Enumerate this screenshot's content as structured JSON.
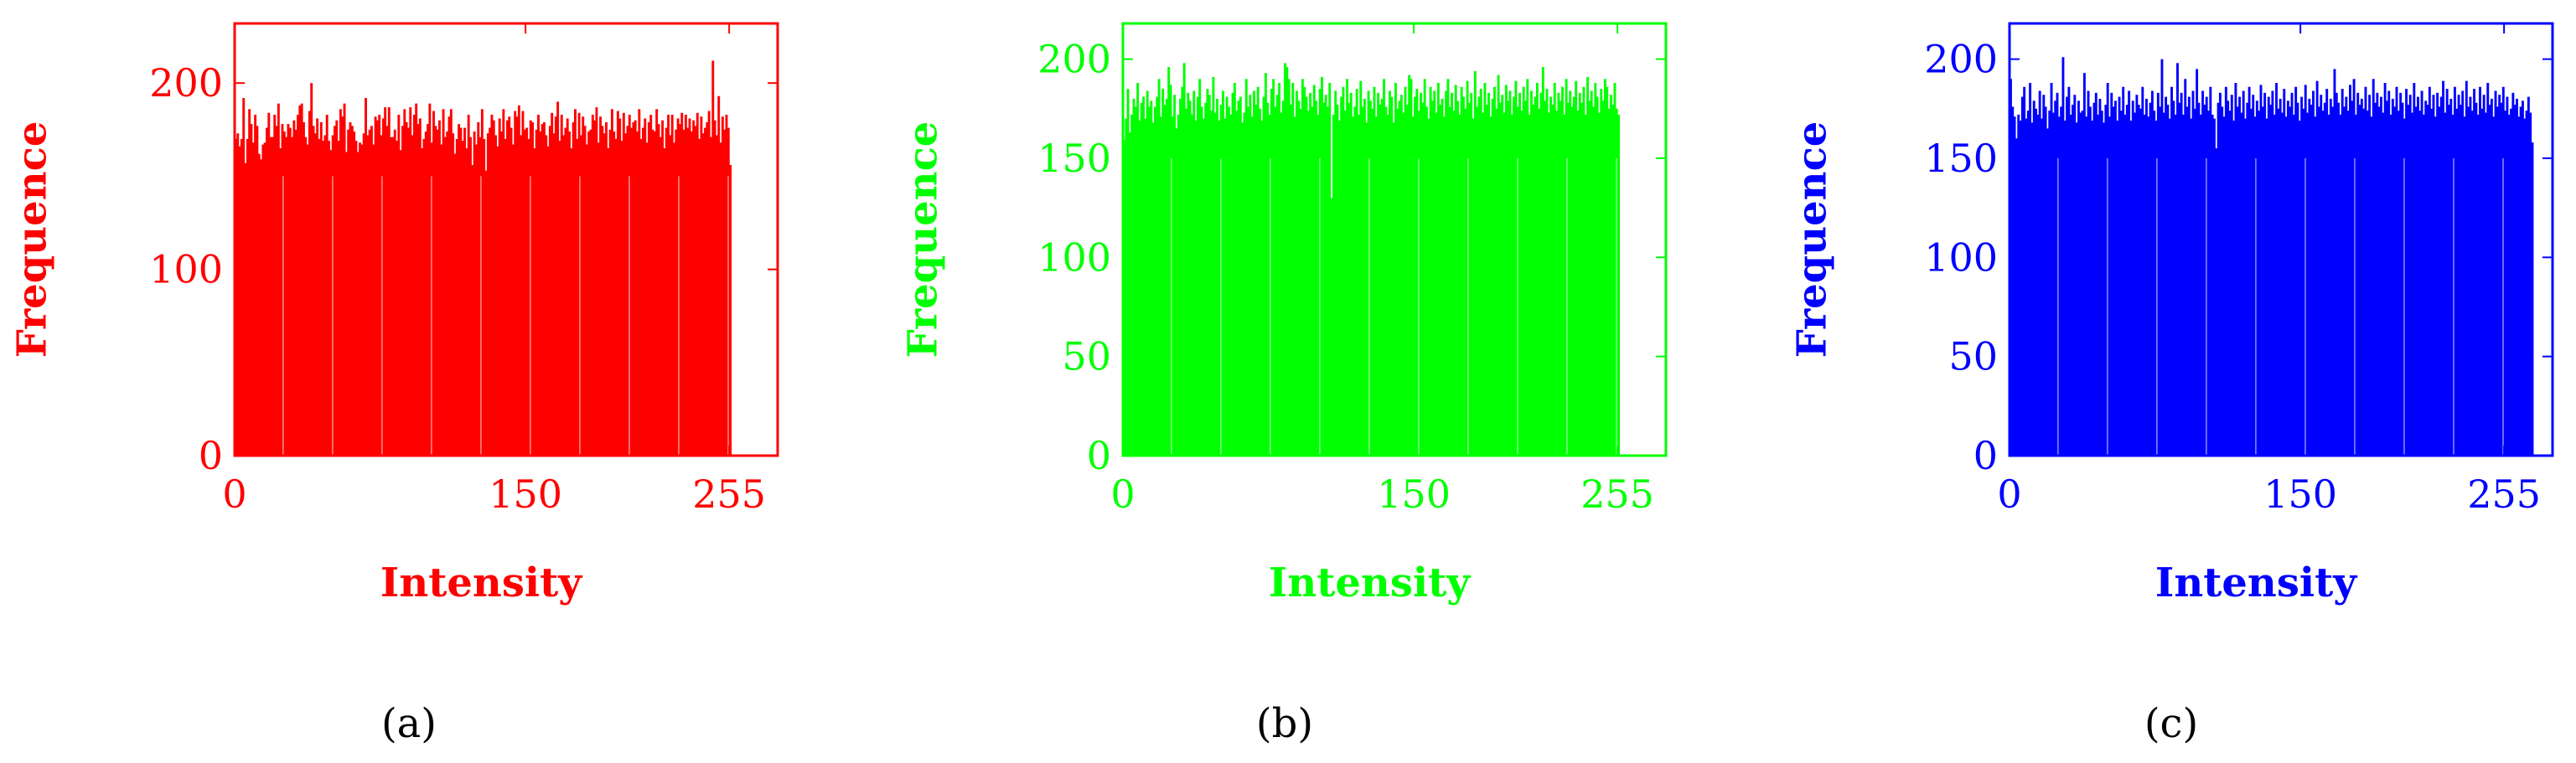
{
  "figure": {
    "panels": [
      {
        "caption": "(a)",
        "color": "#FF0000"
      },
      {
        "caption": "(b)",
        "color": "#00FF00"
      },
      {
        "caption": "(c)",
        "color": "#0000FF"
      }
    ]
  },
  "chart_data": [
    {
      "type": "bar",
      "title": "",
      "xlabel": "Intensity",
      "ylabel": "Frequence",
      "xlim": [
        0,
        280
      ],
      "ylim": [
        0,
        232
      ],
      "xticks": [
        0,
        150,
        255
      ],
      "yticks": [
        0,
        100,
        200
      ],
      "grid": false,
      "color": "#FF0000",
      "x_start": 0,
      "values": [
        170,
        173,
        166,
        170,
        192,
        157,
        170,
        186,
        178,
        168,
        183,
        177,
        162,
        159,
        167,
        168,
        176,
        184,
        171,
        171,
        183,
        177,
        189,
        165,
        178,
        174,
        171,
        178,
        176,
        171,
        180,
        175,
        183,
        188,
        189,
        179,
        171,
        167,
        185,
        200,
        177,
        173,
        181,
        170,
        179,
        169,
        172,
        183,
        169,
        164,
        172,
        177,
        180,
        169,
        186,
        182,
        189,
        163,
        175,
        179,
        177,
        174,
        169,
        163,
        168,
        167,
        173,
        192,
        172,
        175,
        177,
        167,
        182,
        180,
        183,
        172,
        181,
        187,
        177,
        187,
        171,
        171,
        175,
        169,
        183,
        164,
        177,
        186,
        179,
        176,
        187,
        172,
        183,
        189,
        178,
        181,
        165,
        170,
        174,
        178,
        189,
        168,
        185,
        177,
        175,
        180,
        167,
        186,
        171,
        174,
        182,
        186,
        173,
        162,
        170,
        178,
        176,
        169,
        176,
        165,
        183,
        171,
        156,
        174,
        167,
        179,
        171,
        186,
        170,
        153,
        173,
        176,
        183,
        180,
        172,
        166,
        181,
        174,
        186,
        170,
        180,
        182,
        176,
        167,
        185,
        182,
        188,
        172,
        185,
        175,
        176,
        170,
        180,
        179,
        165,
        175,
        183,
        174,
        178,
        179,
        172,
        166,
        177,
        184,
        173,
        182,
        190,
        169,
        183,
        172,
        176,
        181,
        174,
        165,
        179,
        186,
        170,
        184,
        172,
        182,
        177,
        167,
        174,
        175,
        183,
        180,
        187,
        168,
        182,
        177,
        173,
        179,
        165,
        175,
        186,
        174,
        170,
        185,
        181,
        169,
        184,
        173,
        177,
        183,
        176,
        179,
        180,
        174,
        186,
        170,
        176,
        181,
        168,
        179,
        183,
        175,
        174,
        186,
        178,
        171,
        180,
        165,
        176,
        183,
        172,
        183,
        168,
        175,
        181,
        178,
        184,
        175,
        183,
        176,
        181,
        174,
        180,
        177,
        184,
        170,
        182,
        173,
        176,
        179,
        185,
        171,
        212,
        180,
        172,
        193,
        168,
        182,
        175,
        183,
        176,
        156
      ]
    },
    {
      "type": "bar",
      "title": "",
      "xlabel": "Intensity",
      "ylabel": "Frequence",
      "xlim": [
        0,
        280
      ],
      "ylim": [
        0,
        218
      ],
      "xticks": [
        0,
        150,
        255
      ],
      "yticks": [
        0,
        50,
        100,
        150,
        200
      ],
      "grid": false,
      "color": "#00FF00",
      "x_start": 0,
      "values": [
        159,
        170,
        185,
        163,
        172,
        180,
        176,
        188,
        169,
        178,
        181,
        170,
        184,
        176,
        179,
        168,
        176,
        181,
        190,
        171,
        185,
        177,
        180,
        196,
        187,
        171,
        182,
        165,
        172,
        180,
        186,
        198,
        175,
        183,
        179,
        172,
        184,
        169,
        181,
        190,
        176,
        170,
        178,
        185,
        182,
        174,
        191,
        173,
        180,
        169,
        177,
        184,
        170,
        181,
        176,
        172,
        183,
        188,
        174,
        179,
        181,
        168,
        173,
        190,
        176,
        182,
        171,
        184,
        177,
        186,
        175,
        169,
        181,
        193,
        178,
        172,
        185,
        190,
        176,
        182,
        188,
        173,
        179,
        198,
        196,
        190,
        177,
        188,
        171,
        184,
        179,
        175,
        190,
        186,
        181,
        174,
        183,
        176,
        187,
        179,
        172,
        185,
        191,
        178,
        182,
        176,
        188,
        130,
        172,
        184,
        177,
        169,
        181,
        186,
        174,
        190,
        178,
        183,
        171,
        176,
        185,
        172,
        189,
        176,
        180,
        168,
        184,
        179,
        175,
        186,
        171,
        183,
        177,
        180,
        190,
        176,
        172,
        184,
        181,
        168,
        188,
        175,
        179,
        182,
        173,
        186,
        177,
        192,
        190,
        171,
        181,
        185,
        174,
        183,
        178,
        190,
        176,
        170,
        186,
        179,
        184,
        173,
        188,
        177,
        180,
        171,
        184,
        190,
        176,
        183,
        174,
        187,
        179,
        172,
        186,
        181,
        175,
        189,
        178,
        183,
        170,
        194,
        176,
        181,
        185,
        173,
        188,
        177,
        183,
        171,
        180,
        186,
        175,
        192,
        178,
        182,
        173,
        187,
        179,
        184,
        172,
        181,
        189,
        176,
        183,
        174,
        186,
        179,
        190,
        172,
        184,
        177,
        181,
        188,
        175,
        183,
        196,
        179,
        185,
        173,
        181,
        177,
        188,
        174,
        183,
        179,
        186,
        172,
        190,
        178,
        184,
        176,
        181,
        189,
        174,
        183,
        178,
        186,
        172,
        191,
        179,
        184,
        176,
        188,
        181,
        173,
        185,
        179,
        190,
        186,
        175,
        182,
        177,
        188,
        175,
        172
      ]
    },
    {
      "type": "bar",
      "title": "",
      "xlabel": "Intensity",
      "ylabel": "Frequence",
      "xlim": [
        0,
        280
      ],
      "ylim": [
        0,
        218
      ],
      "xticks": [
        0,
        150,
        255
      ],
      "yticks": [
        0,
        50,
        100,
        150,
        200
      ],
      "grid": false,
      "color": "#0000FF",
      "x_start": 0,
      "values": [
        190,
        176,
        171,
        160,
        172,
        169,
        181,
        186,
        170,
        174,
        188,
        168,
        179,
        175,
        172,
        184,
        170,
        182,
        176,
        165,
        174,
        188,
        173,
        179,
        183,
        171,
        176,
        201,
        169,
        181,
        186,
        172,
        177,
        182,
        168,
        179,
        173,
        174,
        193,
        171,
        184,
        176,
        169,
        178,
        183,
        172,
        180,
        174,
        168,
        177,
        188,
        171,
        183,
        176,
        179,
        169,
        181,
        174,
        186,
        172,
        177,
        184,
        169,
        179,
        173,
        182,
        177,
        175,
        186,
        172,
        180,
        171,
        178,
        184,
        174,
        169,
        183,
        176,
        200,
        173,
        181,
        177,
        170,
        186,
        179,
        172,
        198,
        178,
        183,
        172,
        190,
        176,
        181,
        170,
        184,
        175,
        195,
        178,
        172,
        184,
        177,
        181,
        174,
        186,
        172,
        170,
        155,
        178,
        183,
        176,
        171,
        186,
        179,
        174,
        182,
        169,
        188,
        176,
        181,
        173,
        184,
        170,
        178,
        186,
        175,
        182,
        171,
        179,
        174,
        187,
        176,
        183,
        170,
        181,
        177,
        184,
        172,
        188,
        175,
        180,
        173,
        185,
        171,
        179,
        176,
        183,
        172,
        186,
        178,
        169,
        181,
        175,
        187,
        173,
        180,
        177,
        184,
        171,
        189,
        176,
        182,
        174,
        178,
        185,
        172,
        180,
        176,
        195,
        183,
        178,
        172,
        185,
        176,
        181,
        174,
        187,
        179,
        190,
        172,
        183,
        177,
        180,
        175,
        186,
        174,
        182,
        171,
        190,
        178,
        183,
        176,
        181,
        173,
        188,
        179,
        184,
        172,
        180,
        176,
        186,
        174,
        183,
        178,
        170,
        185,
        177,
        182,
        173,
        188,
        176,
        181,
        174,
        184,
        172,
        179,
        177,
        186,
        175,
        182,
        171,
        183,
        176,
        181,
        189,
        173,
        185,
        177,
        180,
        172,
        186,
        175,
        182,
        177,
        184,
        171,
        189,
        176,
        181,
        174,
        185,
        178,
        172,
        186,
        175,
        182,
        173,
        188,
        177,
        180,
        171,
        184,
        176,
        182,
        178,
        186,
        174,
        181,
        172,
        175,
        183,
        177,
        180,
        171,
        176,
        179,
        170,
        174,
        181,
        173,
        158
      ]
    }
  ]
}
